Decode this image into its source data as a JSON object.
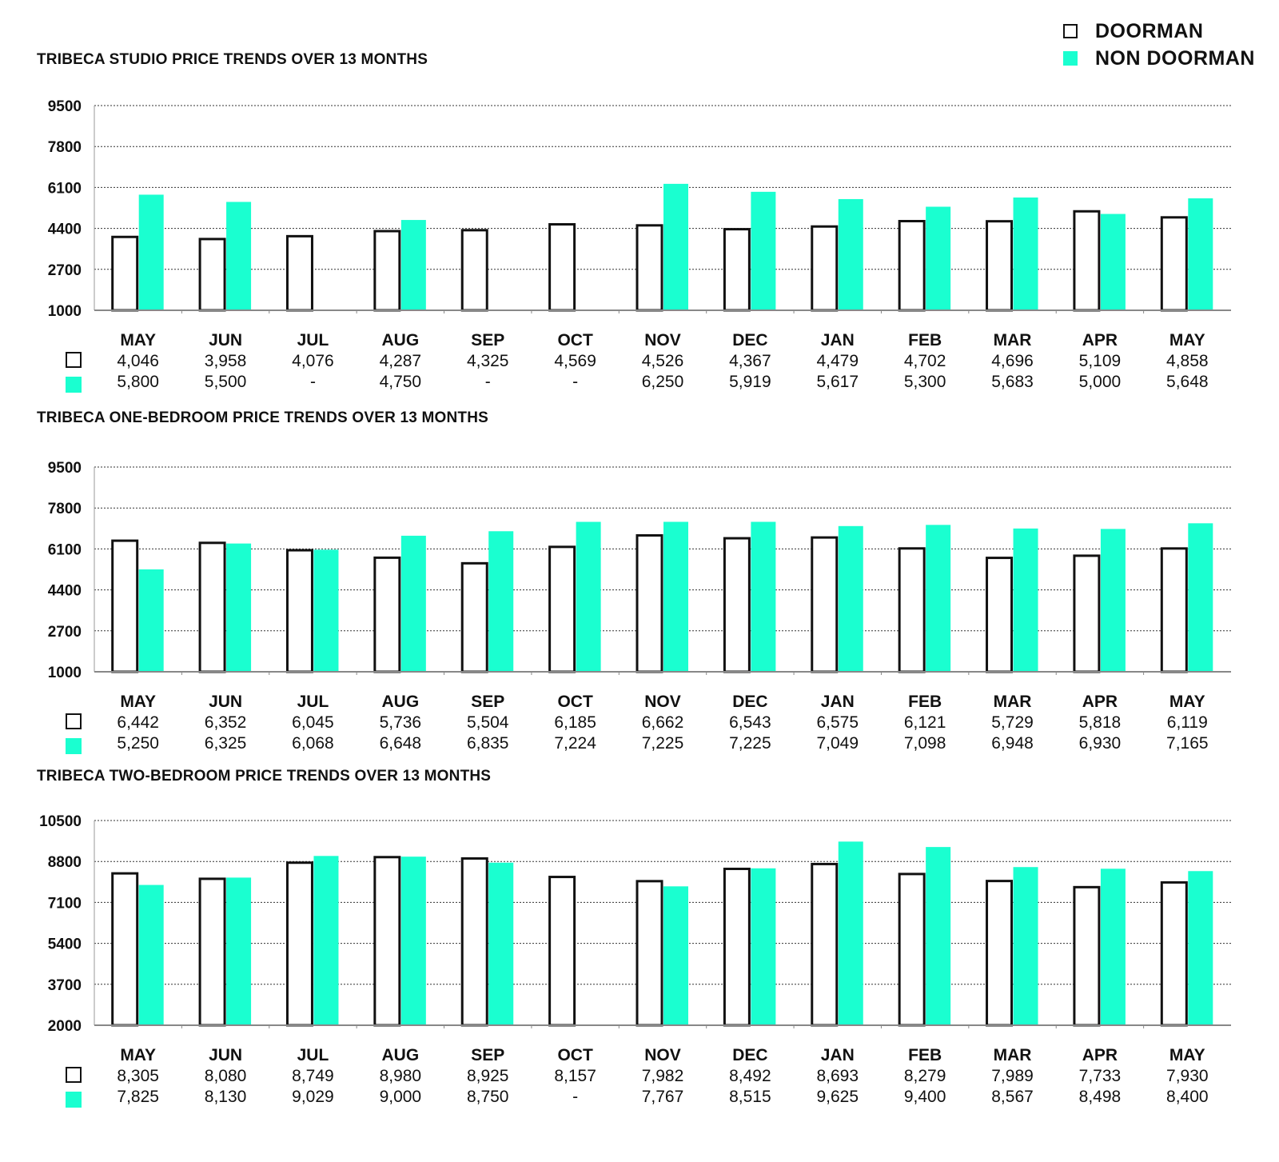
{
  "legend": {
    "doorman_label": "DOORMAN",
    "non_doorman_label": "NON DOORMAN"
  },
  "colors": {
    "doorman_fill": "#ffffff",
    "doorman_stroke": "#111111",
    "non_doorman_fill": "#1affd0"
  },
  "chart_data": [
    {
      "type": "bar",
      "title": "TRIBECA STUDIO PRICE TRENDS OVER 13 MONTHS",
      "categories": [
        "MAY",
        "JUN",
        "JUL",
        "AUG",
        "SEP",
        "OCT",
        "NOV",
        "DEC",
        "JAN",
        "FEB",
        "MAR",
        "APR",
        "MAY"
      ],
      "yticks": [
        1000,
        2700,
        4400,
        6100,
        7800,
        9500
      ],
      "ylim": [
        1000,
        9500
      ],
      "series": [
        {
          "name": "DOORMAN",
          "values": [
            4046,
            3958,
            4076,
            4287,
            4325,
            4569,
            4526,
            4367,
            4479,
            4702,
            4696,
            5109,
            4858
          ],
          "labels": [
            "4,046",
            "3,958",
            "4,076",
            "4,287",
            "4,325",
            "4,569",
            "4,526",
            "4,367",
            "4,479",
            "4,702",
            "4,696",
            "5,109",
            "4,858"
          ]
        },
        {
          "name": "NON DOORMAN",
          "values": [
            5800,
            5500,
            null,
            4750,
            null,
            null,
            6250,
            5919,
            5617,
            5300,
            5683,
            5000,
            5648
          ],
          "labels": [
            "5,800",
            "5,500",
            "-",
            "4,750",
            "-",
            "-",
            "6,250",
            "5,919",
            "5,617",
            "5,300",
            "5,683",
            "5,000",
            "5,648"
          ]
        }
      ]
    },
    {
      "type": "bar",
      "title": "TRIBECA ONE-BEDROOM PRICE TRENDS OVER 13 MONTHS",
      "categories": [
        "MAY",
        "JUN",
        "JUL",
        "AUG",
        "SEP",
        "OCT",
        "NOV",
        "DEC",
        "JAN",
        "FEB",
        "MAR",
        "APR",
        "MAY"
      ],
      "yticks": [
        1000,
        2700,
        4400,
        6100,
        7800,
        9500
      ],
      "ylim": [
        1000,
        9500
      ],
      "series": [
        {
          "name": "DOORMAN",
          "values": [
            6442,
            6352,
            6045,
            5736,
            5504,
            6185,
            6662,
            6543,
            6575,
            6121,
            5729,
            5818,
            6119
          ],
          "labels": [
            "6,442",
            "6,352",
            "6,045",
            "5,736",
            "5,504",
            "6,185",
            "6,662",
            "6,543",
            "6,575",
            "6,121",
            "5,729",
            "5,818",
            "6,119"
          ]
        },
        {
          "name": "NON DOORMAN",
          "values": [
            5250,
            6325,
            6068,
            6648,
            6835,
            7224,
            7225,
            7225,
            7049,
            7098,
            6948,
            6930,
            7165
          ],
          "labels": [
            "5,250",
            "6,325",
            "6,068",
            "6,648",
            "6,835",
            "7,224",
            "7,225",
            "7,225",
            "7,049",
            "7,098",
            "6,948",
            "6,930",
            "7,165"
          ]
        }
      ]
    },
    {
      "type": "bar",
      "title": "TRIBECA TWO-BEDROOM PRICE TRENDS OVER 13 MONTHS",
      "categories": [
        "MAY",
        "JUN",
        "JUL",
        "AUG",
        "SEP",
        "OCT",
        "NOV",
        "DEC",
        "JAN",
        "FEB",
        "MAR",
        "APR",
        "MAY"
      ],
      "yticks": [
        2000,
        3700,
        5400,
        7100,
        8800,
        10500
      ],
      "ylim": [
        2000,
        10500
      ],
      "series": [
        {
          "name": "DOORMAN",
          "values": [
            8305,
            8080,
            8749,
            8980,
            8925,
            8157,
            7982,
            8492,
            8693,
            8279,
            7989,
            7733,
            7930
          ],
          "labels": [
            "8,305",
            "8,080",
            "8,749",
            "8,980",
            "8,925",
            "8,157",
            "7,982",
            "8,492",
            "8,693",
            "8,279",
            "7,989",
            "7,733",
            "7,930"
          ]
        },
        {
          "name": "NON DOORMAN",
          "values": [
            7825,
            8130,
            9029,
            9000,
            8750,
            null,
            7767,
            8515,
            9625,
            9400,
            8567,
            8498,
            8400
          ],
          "labels": [
            "7,825",
            "8,130",
            "9,029",
            "9,000",
            "8,750",
            "-",
            "7,767",
            "8,515",
            "9,625",
            "9,400",
            "8,567",
            "8,498",
            "8,400"
          ]
        }
      ]
    }
  ]
}
